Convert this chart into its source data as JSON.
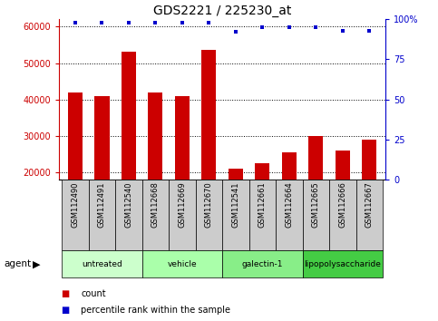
{
  "title": "GDS2221 / 225230_at",
  "samples": [
    "GSM112490",
    "GSM112491",
    "GSM112540",
    "GSM112668",
    "GSM112669",
    "GSM112670",
    "GSM112541",
    "GSM112661",
    "GSM112664",
    "GSM112665",
    "GSM112666",
    "GSM112667"
  ],
  "counts": [
    42000,
    41000,
    53000,
    42000,
    41000,
    53500,
    21000,
    22500,
    25500,
    30000,
    26000,
    29000
  ],
  "percentiles": [
    98,
    98,
    98,
    98,
    98,
    98,
    92,
    95,
    95,
    95,
    93,
    93
  ],
  "groups": [
    {
      "label": "untreated",
      "start": 0,
      "end": 3,
      "color": "#ccffcc"
    },
    {
      "label": "vehicle",
      "start": 3,
      "end": 6,
      "color": "#aaffaa"
    },
    {
      "label": "galectin-1",
      "start": 6,
      "end": 9,
      "color": "#88ee88"
    },
    {
      "label": "lipopolysaccharide",
      "start": 9,
      "end": 12,
      "color": "#44cc44"
    }
  ],
  "bar_color": "#cc0000",
  "dot_color": "#0000cc",
  "ylim_left": [
    18000,
    62000
  ],
  "yticks_left": [
    20000,
    30000,
    40000,
    50000,
    60000
  ],
  "ylim_right": [
    0,
    100
  ],
  "yticks_right": [
    0,
    25,
    50,
    75,
    100
  ],
  "ylabel_left_color": "#cc0000",
  "ylabel_right_color": "#0000cc",
  "legend_count_color": "#cc0000",
  "legend_pct_color": "#0000cc",
  "background_color": "#ffffff",
  "xticklabel_bg": "#cccccc",
  "title_fontsize": 10,
  "tick_fontsize": 7,
  "label_fontsize": 6,
  "group_fontsize": 6.5,
  "legend_fontsize": 7
}
